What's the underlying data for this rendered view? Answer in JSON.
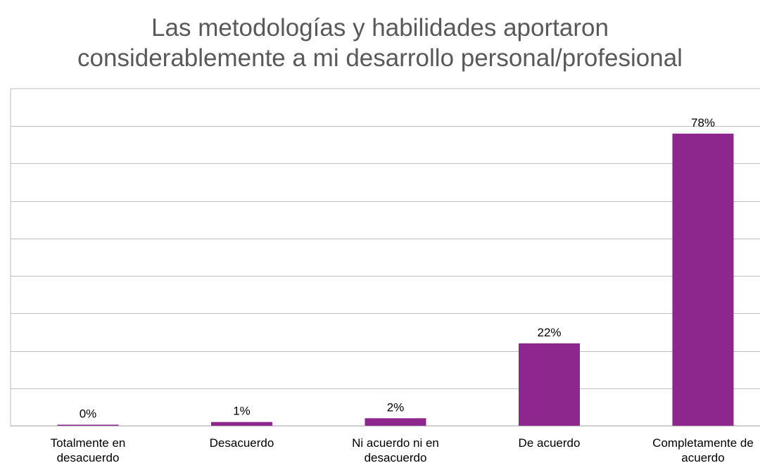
{
  "chart_data": {
    "type": "bar",
    "title_lines": [
      "Las metodologías y habilidades aportaron",
      "considerablemente a mi desarrollo personal/profesional"
    ],
    "categories": [
      [
        "Totalmente en",
        "desacuerdo"
      ],
      [
        "Desacuerdo"
      ],
      [
        "Ni acuerdo ni en",
        "desacuerdo"
      ],
      [
        "De acuerdo"
      ],
      [
        "Completamente de",
        "acuerdo"
      ]
    ],
    "values": [
      0,
      1,
      2,
      22,
      78
    ],
    "value_labels": [
      "0%",
      "1%",
      "2%",
      "22%",
      "78%"
    ],
    "ylim": [
      0,
      90
    ],
    "gridlines": [
      10,
      20,
      30,
      40,
      50,
      60,
      70,
      80
    ],
    "grid": true,
    "bar_color": "#8E278D",
    "legend": false
  }
}
